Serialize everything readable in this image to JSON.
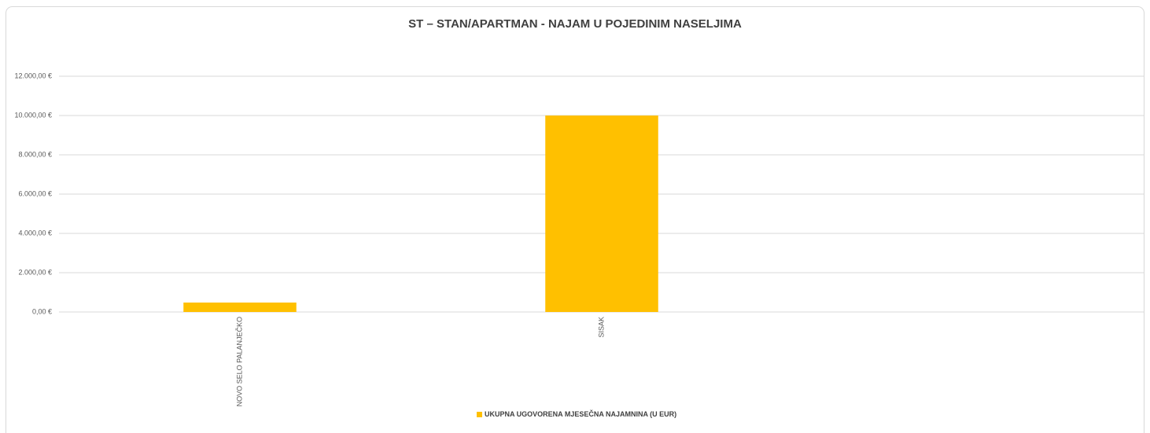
{
  "chart_data": {
    "type": "bar",
    "title": "ST – STAN/APARTMAN - NAJAM U POJEDINIM NASELJIMA",
    "categories": [
      "NOVO SELO PALANJEČKO",
      "SISAK",
      null
    ],
    "series": [
      {
        "name": "UKUPNA UGOVORENA MJESEČNA NAJAMNINA (U EUR)",
        "color": "#ffc000",
        "values": [
          480,
          10000,
          null
        ]
      }
    ],
    "ylim": [
      0,
      12000
    ],
    "yticks": [
      {
        "value": 0,
        "label": "0,00 €"
      },
      {
        "value": 2000,
        "label": "2.000,00 €"
      },
      {
        "value": 4000,
        "label": "4.000,00 €"
      },
      {
        "value": 6000,
        "label": "6.000,00 €"
      },
      {
        "value": 8000,
        "label": "8.000,00 €"
      },
      {
        "value": 10000,
        "label": "10.000,00 €"
      },
      {
        "value": 12000,
        "label": "12.000,00 €"
      }
    ],
    "grid": true,
    "legend": "bottom"
  }
}
